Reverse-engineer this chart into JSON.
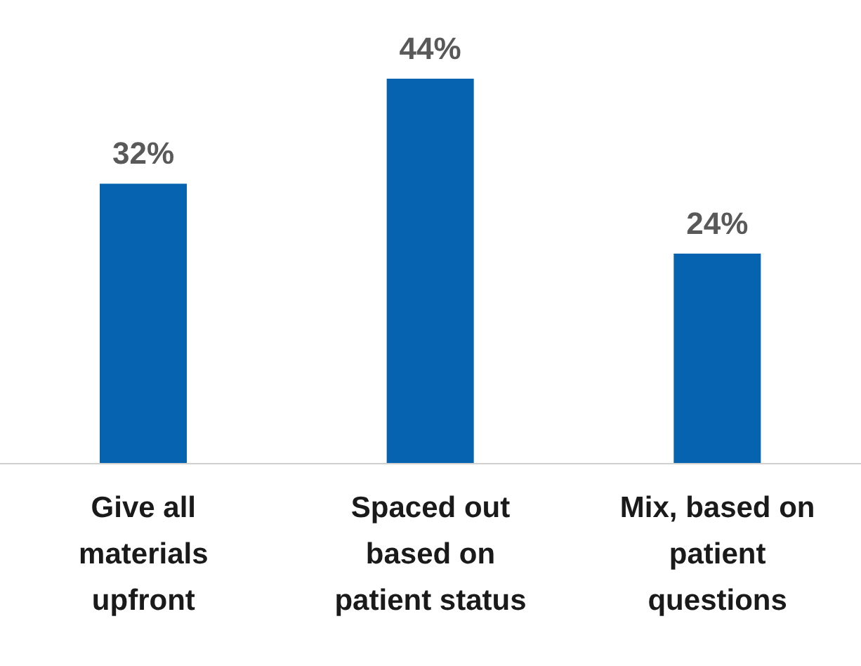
{
  "chart_data": {
    "type": "bar",
    "categories": [
      "Give all materials upfront",
      "Spaced out based on patient status",
      "Mix, based on patient questions"
    ],
    "values": [
      32,
      44,
      24
    ],
    "color": "#0563b0",
    "data_labels": true,
    "value_labels": [
      "32%",
      "44%",
      "24%"
    ]
  }
}
